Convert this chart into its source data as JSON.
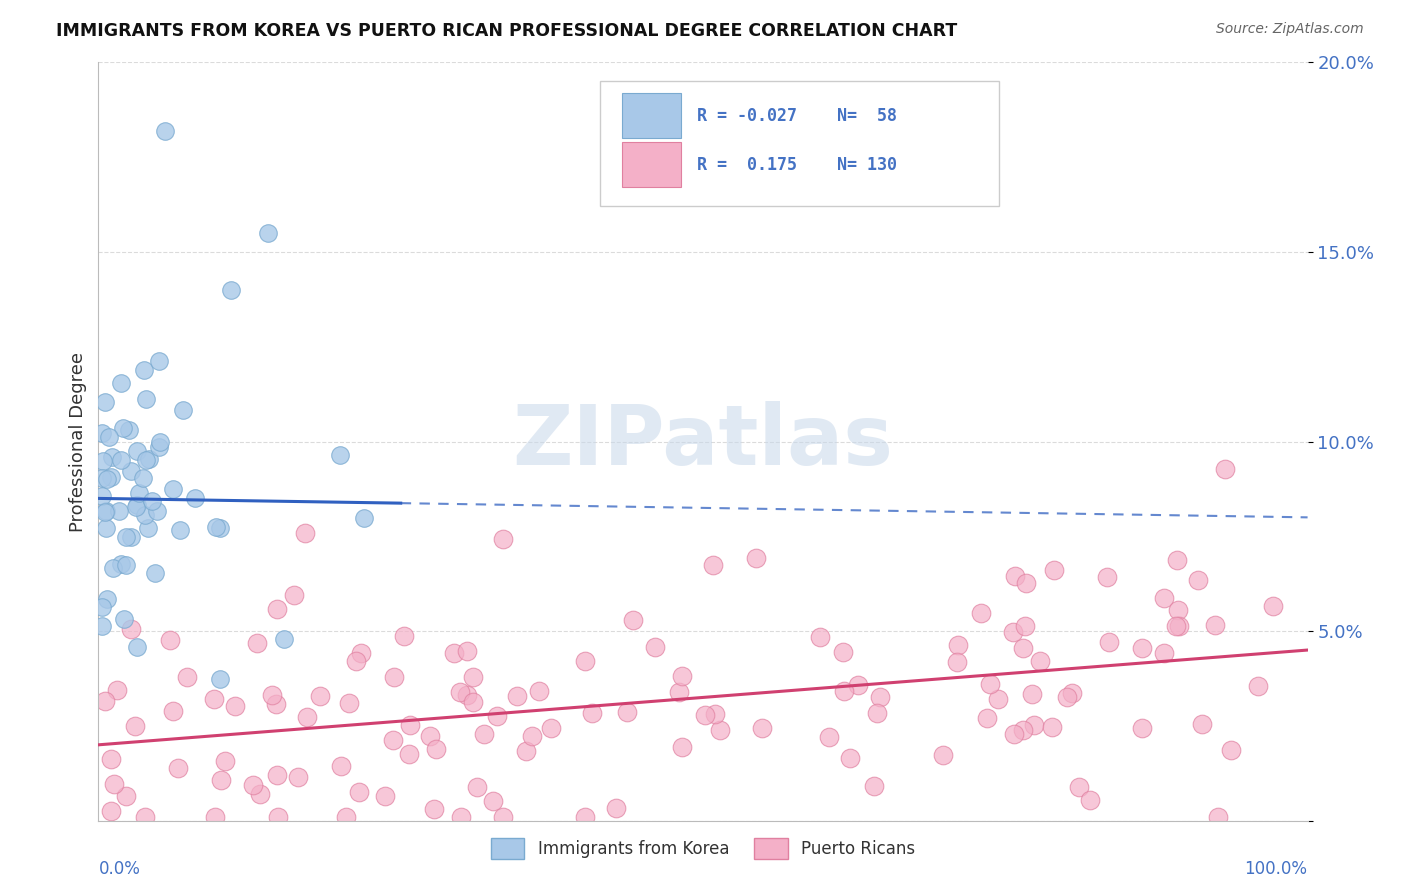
{
  "title": "IMMIGRANTS FROM KOREA VS PUERTO RICAN PROFESSIONAL DEGREE CORRELATION CHART",
  "source_text": "Source: ZipAtlas.com",
  "ylabel": "Professional Degree",
  "background_color": "#ffffff",
  "grid_color": "#cccccc",
  "blue_color": "#a8c8e8",
  "blue_edge": "#7aaad0",
  "pink_color": "#f4b0c8",
  "pink_edge": "#e080a0",
  "blue_line_color": "#3060c0",
  "pink_line_color": "#d04070",
  "korea_R": -0.027,
  "korea_N": 58,
  "pr_R": 0.175,
  "pr_N": 130,
  "xlim": [
    0,
    100
  ],
  "ylim": [
    0,
    20
  ],
  "ytick_vals": [
    0,
    5,
    10,
    15,
    20
  ],
  "ytick_labels": [
    "",
    "5.0%",
    "10.0%",
    "15.0%",
    "20.0%"
  ],
  "watermark_color": "#c8d8ea",
  "watermark_alpha": 0.55,
  "label_color": "#4472c4",
  "title_color": "#111111",
  "source_color": "#666666"
}
